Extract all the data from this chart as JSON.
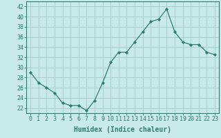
{
  "x": [
    0,
    1,
    2,
    3,
    4,
    5,
    6,
    7,
    8,
    9,
    10,
    11,
    12,
    13,
    14,
    15,
    16,
    17,
    18,
    19,
    20,
    21,
    22,
    23
  ],
  "y": [
    29,
    27,
    26,
    25,
    23,
    22.5,
    22.5,
    21.5,
    23.5,
    27,
    31,
    33,
    33,
    35,
    37,
    39,
    39.5,
    41.5,
    37,
    35,
    34.5,
    34.5,
    33,
    32.5
  ],
  "line_color": "#2d7d6e",
  "marker_color": "#2d7d6e",
  "bg_color": "#c8eaea",
  "grid_color": "#a8cece",
  "xlabel": "Humidex (Indice chaleur)",
  "ylabel": "",
  "xlim": [
    -0.5,
    23.5
  ],
  "ylim": [
    21,
    43
  ],
  "yticks": [
    22,
    24,
    26,
    28,
    30,
    32,
    34,
    36,
    38,
    40,
    42
  ],
  "xticks": [
    0,
    1,
    2,
    3,
    4,
    5,
    6,
    7,
    8,
    9,
    10,
    11,
    12,
    13,
    14,
    15,
    16,
    17,
    18,
    19,
    20,
    21,
    22,
    23
  ],
  "xtick_labels": [
    "0",
    "1",
    "2",
    "3",
    "4",
    "5",
    "6",
    "7",
    "8",
    "9",
    "10",
    "11",
    "12",
    "13",
    "14",
    "15",
    "16",
    "17",
    "18",
    "19",
    "20",
    "21",
    "22",
    "23"
  ],
  "spine_color": "#2d7d6e",
  "tick_color": "#2d7d6e",
  "label_fontsize": 7,
  "tick_fontsize": 6
}
